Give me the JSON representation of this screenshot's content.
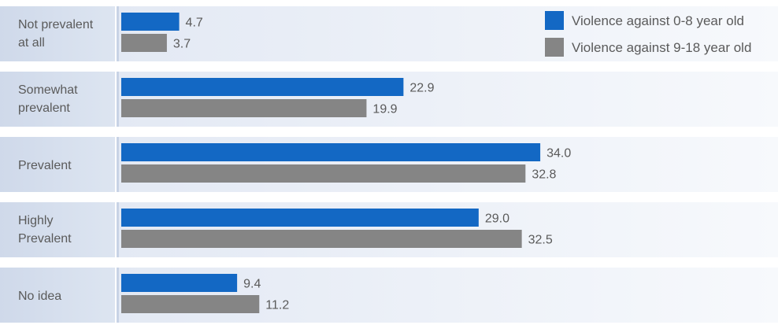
{
  "chart_data": {
    "type": "bar",
    "orientation": "horizontal",
    "categories": [
      [
        "Not prevalent",
        "at all"
      ],
      [
        "Somewhat",
        "prevalent"
      ],
      [
        "Prevalent"
      ],
      [
        "Highly",
        "Prevalent"
      ],
      [
        "No idea"
      ]
    ],
    "series": [
      {
        "name": "Violence against 0-8 year old",
        "color": "#1368c4",
        "values": [
          4.7,
          22.9,
          34.0,
          29.0,
          9.4
        ],
        "labels": [
          "4.7",
          "22.9",
          "34.0",
          "29.0",
          "9.4"
        ]
      },
      {
        "name": "Violence against 9-18 year old",
        "color": "#858585",
        "values": [
          3.7,
          19.9,
          32.8,
          32.5,
          11.2
        ],
        "labels": [
          "3.7",
          "19.9",
          "32.8",
          "32.5",
          "11.2"
        ]
      }
    ],
    "xlim": [
      0,
      60
    ],
    "grid": false,
    "legend_position": "top-right"
  }
}
